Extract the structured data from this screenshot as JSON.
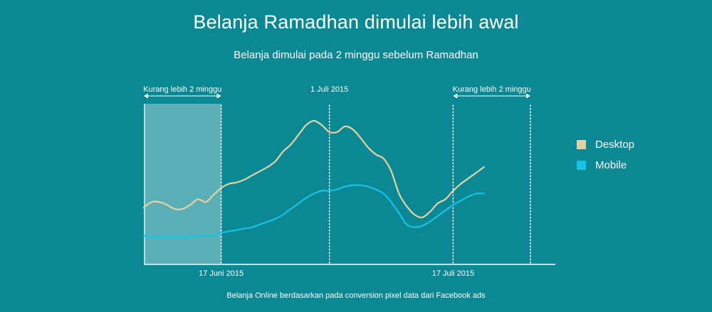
{
  "chart_data": {
    "type": "line",
    "title": "Belanja Ramadhan dimulai lebih awal",
    "subtitle": "Belanja dimulai pada 2 minggu sebelum Ramadhan",
    "footer": "Belanja Online berdasarkan pada conversion pixel data dari Facebook ads",
    "xlabel": "",
    "ylabel": "",
    "x_domain": [
      "2015-06-07",
      "2015-07-27"
    ],
    "y_range": [
      0,
      100
    ],
    "grid": false,
    "legend_position": "right",
    "x_tick_labels": [
      {
        "date": "2015-06-17",
        "label": "17 Juni 2015"
      },
      {
        "date": "2015-07-17",
        "label": "17 Juli 2015"
      }
    ],
    "markers": [
      {
        "date": "2015-07-01",
        "label": "1 Juli 2015"
      },
      {
        "date": "2015-07-17",
        "label": ""
      },
      {
        "date": "2015-07-27",
        "label": ""
      }
    ],
    "ranges": [
      {
        "start": "2015-06-07",
        "end": "2015-06-17",
        "label": "Kurang lebih 2 minggu",
        "shaded": true
      },
      {
        "start": "2015-07-17",
        "end": "2015-07-27",
        "label": "Kurang lebih 2 minggu",
        "shaded": false
      }
    ],
    "series": [
      {
        "name": "Desktop",
        "color": "#e3d3a3",
        "points": [
          [
            "2015-06-07",
            38
          ],
          [
            "2015-06-08",
            42
          ],
          [
            "2015-06-09",
            42
          ],
          [
            "2015-06-10",
            40
          ],
          [
            "2015-06-11",
            37
          ],
          [
            "2015-06-12",
            37
          ],
          [
            "2015-06-13",
            40
          ],
          [
            "2015-06-14",
            44
          ],
          [
            "2015-06-15",
            42
          ],
          [
            "2015-06-16",
            47
          ],
          [
            "2015-06-17",
            52
          ],
          [
            "2015-06-18",
            55
          ],
          [
            "2015-06-19",
            56
          ],
          [
            "2015-06-20",
            58
          ],
          [
            "2015-06-21",
            61
          ],
          [
            "2015-06-22",
            64
          ],
          [
            "2015-06-23",
            67
          ],
          [
            "2015-06-24",
            71
          ],
          [
            "2015-06-25",
            78
          ],
          [
            "2015-06-26",
            83
          ],
          [
            "2015-06-27",
            90
          ],
          [
            "2015-06-28",
            97
          ],
          [
            "2015-06-29",
            100
          ],
          [
            "2015-06-30",
            97
          ],
          [
            "2015-07-01",
            92
          ],
          [
            "2015-07-02",
            92
          ],
          [
            "2015-07-03",
            96
          ],
          [
            "2015-07-04",
            94
          ],
          [
            "2015-07-05",
            88
          ],
          [
            "2015-07-06",
            81
          ],
          [
            "2015-07-07",
            76
          ],
          [
            "2015-07-08",
            73
          ],
          [
            "2015-07-09",
            64
          ],
          [
            "2015-07-10",
            48
          ],
          [
            "2015-07-11",
            39
          ],
          [
            "2015-07-12",
            33
          ],
          [
            "2015-07-13",
            31
          ],
          [
            "2015-07-14",
            35
          ],
          [
            "2015-07-15",
            41
          ],
          [
            "2015-07-16",
            44
          ],
          [
            "2015-07-17",
            50
          ],
          [
            "2015-07-18",
            55
          ],
          [
            "2015-07-19",
            59
          ],
          [
            "2015-07-20",
            63
          ],
          [
            "2015-07-21",
            67
          ]
        ]
      },
      {
        "name": "Mobile",
        "color": "#17c3e4",
        "points": [
          [
            "2015-06-07",
            18
          ],
          [
            "2015-06-08",
            17
          ],
          [
            "2015-06-09",
            17
          ],
          [
            "2015-06-10",
            17
          ],
          [
            "2015-06-11",
            17
          ],
          [
            "2015-06-12",
            17
          ],
          [
            "2015-06-13",
            17
          ],
          [
            "2015-06-14",
            18
          ],
          [
            "2015-06-15",
            18
          ],
          [
            "2015-06-16",
            18
          ],
          [
            "2015-06-17",
            20
          ],
          [
            "2015-06-18",
            21
          ],
          [
            "2015-06-19",
            22
          ],
          [
            "2015-06-20",
            23
          ],
          [
            "2015-06-21",
            24
          ],
          [
            "2015-06-22",
            26
          ],
          [
            "2015-06-23",
            28
          ],
          [
            "2015-06-24",
            30
          ],
          [
            "2015-06-25",
            33
          ],
          [
            "2015-06-26",
            37
          ],
          [
            "2015-06-27",
            41
          ],
          [
            "2015-06-28",
            45
          ],
          [
            "2015-06-29",
            48
          ],
          [
            "2015-06-30",
            50
          ],
          [
            "2015-07-01",
            50
          ],
          [
            "2015-07-02",
            51
          ],
          [
            "2015-07-03",
            53
          ],
          [
            "2015-07-04",
            54
          ],
          [
            "2015-07-05",
            54
          ],
          [
            "2015-07-06",
            53
          ],
          [
            "2015-07-07",
            51
          ],
          [
            "2015-07-08",
            48
          ],
          [
            "2015-07-09",
            42
          ],
          [
            "2015-07-10",
            34
          ],
          [
            "2015-07-11",
            26
          ],
          [
            "2015-07-12",
            24
          ],
          [
            "2015-07-13",
            25
          ],
          [
            "2015-07-14",
            28
          ],
          [
            "2015-07-15",
            32
          ],
          [
            "2015-07-16",
            36
          ],
          [
            "2015-07-17",
            40
          ],
          [
            "2015-07-18",
            43
          ],
          [
            "2015-07-19",
            46
          ],
          [
            "2015-07-20",
            48
          ],
          [
            "2015-07-21",
            48
          ]
        ]
      }
    ]
  }
}
